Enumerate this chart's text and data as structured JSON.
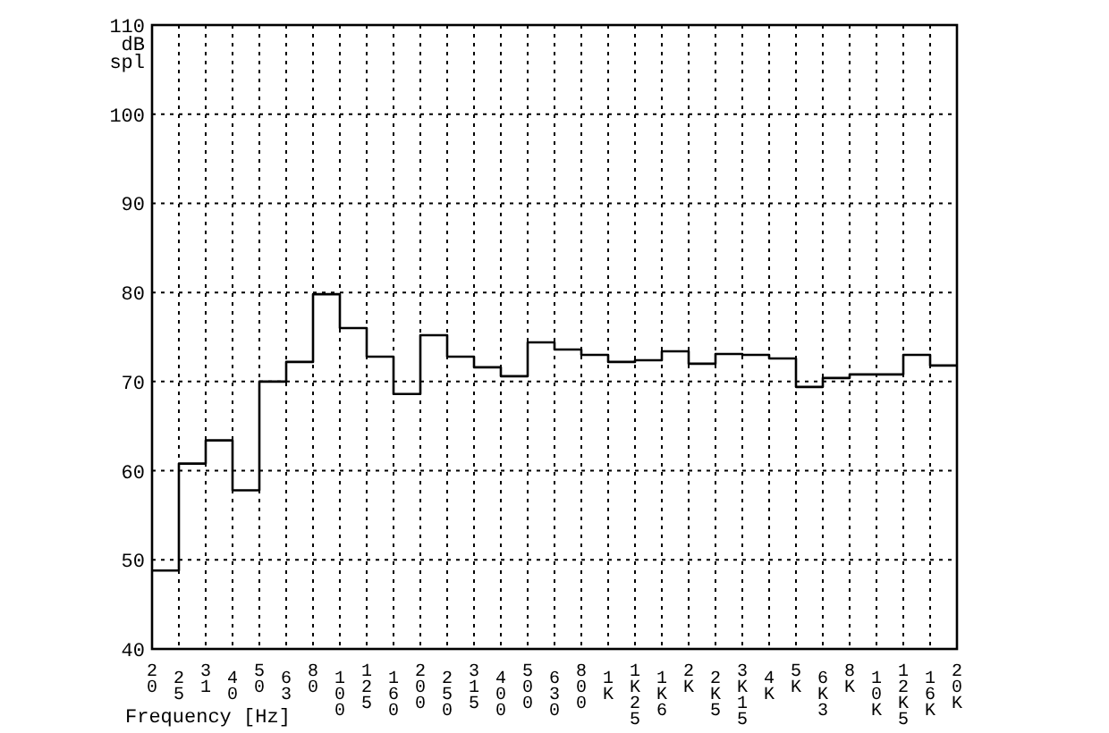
{
  "chart_data": {
    "type": "step",
    "ylabel": "dB spl",
    "xlabel": "Frequency [Hz]",
    "categories": [
      "20",
      "25",
      "31",
      "40",
      "50",
      "63",
      "80",
      "100",
      "125",
      "160",
      "200",
      "250",
      "315",
      "400",
      "500",
      "630",
      "800",
      "1K",
      "1K25",
      "1K6",
      "2K",
      "2K5",
      "3K15",
      "4K",
      "5K",
      "6K3",
      "8K",
      "10K",
      "12K5",
      "16K",
      "20K"
    ],
    "series": [
      {
        "color": "#000000",
        "values": [
          48.8,
          60.8,
          63.4,
          57.8,
          70.0,
          72.2,
          79.8,
          76.0,
          72.8,
          68.6,
          75.2,
          72.8,
          71.6,
          70.6,
          74.4,
          73.6,
          73.0,
          72.2,
          72.4,
          73.4,
          72.0,
          73.1,
          73.0,
          72.6,
          69.4,
          70.4,
          70.8,
          70.8,
          73.0,
          71.8,
          71.8
        ]
      }
    ],
    "ylim": [
      40,
      110
    ],
    "yticks": [
      40,
      50,
      60,
      70,
      80,
      90,
      100,
      110
    ],
    "grid": true
  }
}
